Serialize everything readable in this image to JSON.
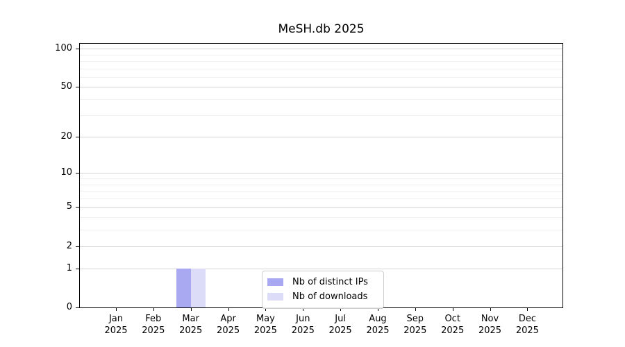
{
  "chart_data": {
    "type": "bar",
    "title": "MeSH.db 2025",
    "xlabel": "",
    "ylabel": "",
    "scale": "log10(1+value)",
    "grid": "on",
    "legend_position": "bottom-center",
    "categories": [
      "Jan",
      "Feb",
      "Mar",
      "Apr",
      "May",
      "Jun",
      "Jul",
      "Aug",
      "Sep",
      "Oct",
      "Nov",
      "Dec"
    ],
    "category_year": "2025",
    "series": [
      {
        "name": "Nb of distinct IPs",
        "color": "#a9a9f2",
        "values": [
          0,
          0,
          1,
          0,
          0,
          0,
          0,
          0,
          0,
          0,
          0,
          0
        ]
      },
      {
        "name": "Nb of downloads",
        "color": "#dcdcf8",
        "values": [
          0,
          0,
          1,
          0,
          0,
          0,
          0,
          0,
          0,
          0,
          0,
          0
        ]
      }
    ],
    "y_ticks": [
      0,
      1,
      2,
      5,
      10,
      20,
      50,
      100
    ],
    "y_minor_ticks": [
      3,
      4,
      6,
      7,
      8,
      9,
      30,
      40,
      60,
      70,
      80,
      90
    ],
    "ylim_top_value": 112,
    "colors": {
      "major_grid": "#d5d5d5",
      "minor_grid": "#efefef",
      "frame": "#000000",
      "background": "#ffffff"
    }
  }
}
